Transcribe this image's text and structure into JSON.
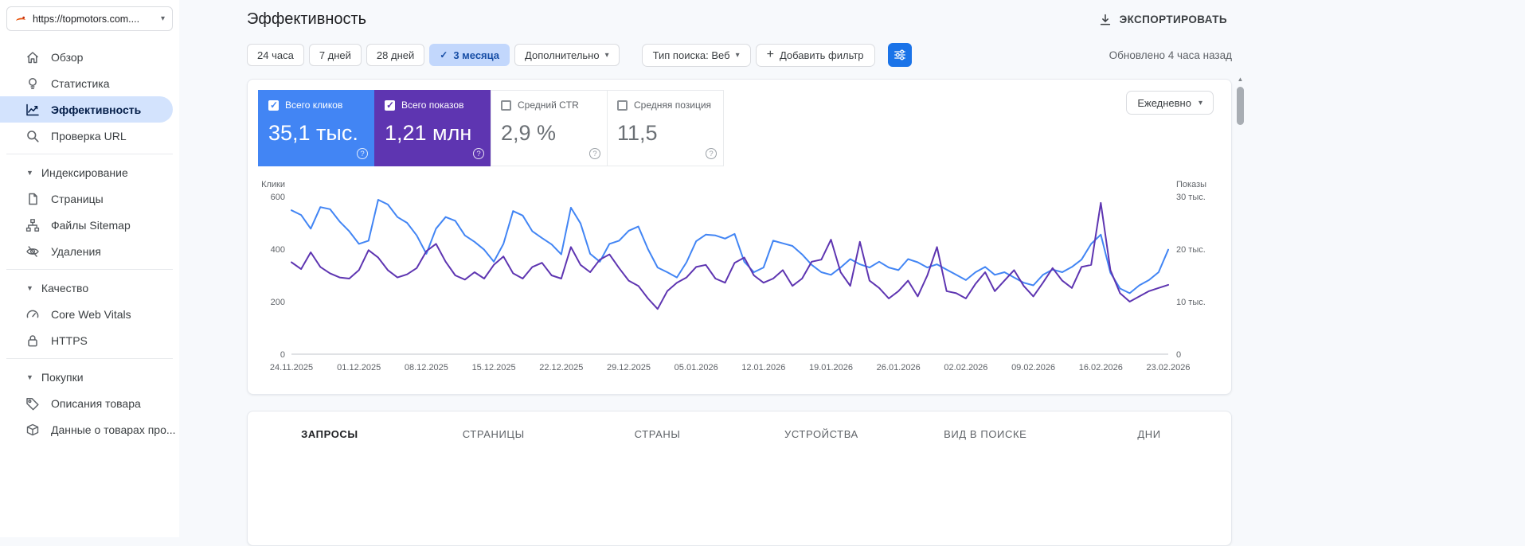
{
  "property": {
    "url": "https://topmotors.com...."
  },
  "sidebar": {
    "selected": "Эффективность",
    "items": [
      {
        "label": "Обзор"
      },
      {
        "label": "Статистика"
      },
      {
        "label": "Эффективность"
      },
      {
        "label": "Проверка URL"
      }
    ],
    "sections": [
      {
        "label": "Индексирование",
        "items": [
          {
            "label": "Страницы"
          },
          {
            "label": "Файлы Sitemap"
          },
          {
            "label": "Удаления"
          }
        ]
      },
      {
        "label": "Качество",
        "items": [
          {
            "label": "Core Web Vitals"
          },
          {
            "label": "HTTPS"
          }
        ]
      },
      {
        "label": "Покупки",
        "items": [
          {
            "label": "Описания товара"
          },
          {
            "label": "Данные о товарах про..."
          }
        ]
      }
    ]
  },
  "header": {
    "title": "Эффективность",
    "export_label": "ЭКСПОРТИРОВАТЬ"
  },
  "filters": {
    "ranges": [
      "24 часа",
      "7 дней",
      "28 дней",
      "3 месяца"
    ],
    "selected_range": "3 месяца",
    "more_label": "Дополнительно",
    "search_type": "Тип поиска: Веб",
    "add_filter": "Добавить фильтр",
    "updated": "Обновлено 4 часа назад"
  },
  "metrics": [
    {
      "label": "Всего кликов",
      "value": "35,1 тыс.",
      "checked": true,
      "color": "#4285f4"
    },
    {
      "label": "Всего показов",
      "value": "1,21 млн",
      "checked": true,
      "color": "#5e35b1"
    },
    {
      "label": "Средний CTR",
      "value": "2,9 %",
      "checked": false,
      "color": "#6b7075"
    },
    {
      "label": "Средняя позиция",
      "value": "11,5",
      "checked": false,
      "color": "#6b7075"
    }
  ],
  "granularity": "Ежедневно",
  "chart_data": {
    "type": "line",
    "x_tick_labels": [
      "24.11.2025",
      "01.12.2025",
      "08.12.2025",
      "15.12.2025",
      "22.12.2025",
      "29.12.2025",
      "05.01.2026",
      "12.01.2026",
      "19.01.2026",
      "26.01.2026",
      "02.02.2026",
      "09.02.2026",
      "16.02.2026",
      "23.02.2026"
    ],
    "left_axis": {
      "label": "Клики",
      "ticks": [
        0,
        200,
        400,
        600
      ],
      "max": 600
    },
    "right_axis": {
      "label": "Показы",
      "ticks": [
        "0",
        "10 тыс.",
        "20 тыс.",
        "30 тыс."
      ],
      "max": 30
    },
    "legend_position": "none",
    "grid": false,
    "series": [
      {
        "name": "Клики",
        "axis": "left",
        "color": "#4285f4",
        "values": [
          548,
          530,
          478,
          560,
          552,
          505,
          468,
          420,
          432,
          588,
          570,
          522,
          500,
          452,
          382,
          478,
          522,
          508,
          452,
          428,
          398,
          352,
          420,
          545,
          528,
          468,
          442,
          418,
          380,
          558,
          498,
          382,
          352,
          420,
          432,
          470,
          486,
          400,
          330,
          312,
          292,
          350,
          430,
          455,
          452,
          440,
          458,
          352,
          312,
          330,
          432,
          422,
          412,
          380,
          340,
          312,
          302,
          330,
          362,
          342,
          330,
          352,
          330,
          320,
          362,
          350,
          330,
          342,
          322,
          302,
          282,
          312,
          332,
          302,
          312,
          292,
          272,
          262,
          302,
          322,
          312,
          332,
          360,
          420,
          455,
          310,
          250,
          232,
          262,
          282,
          312,
          398
        ]
      },
      {
        "name": "Показы (тыс.)",
        "axis": "right",
        "color": "#5e35b1",
        "values": [
          17.5,
          16.2,
          19.4,
          16.6,
          15.4,
          14.6,
          14.4,
          16.0,
          19.8,
          18.4,
          16.0,
          14.6,
          15.2,
          16.4,
          19.6,
          21.0,
          17.6,
          15.0,
          14.2,
          15.6,
          14.4,
          17.0,
          18.6,
          15.4,
          14.4,
          16.6,
          17.4,
          15.0,
          14.4,
          20.4,
          17.0,
          15.6,
          18.0,
          19.0,
          16.4,
          14.0,
          13.0,
          10.6,
          8.6,
          12.0,
          13.6,
          14.6,
          16.6,
          17.0,
          14.4,
          13.6,
          17.4,
          18.4,
          15.0,
          13.6,
          14.4,
          16.0,
          13.0,
          14.4,
          17.6,
          18.0,
          21.8,
          15.6,
          13.0,
          21.4,
          14.0,
          12.6,
          10.6,
          12.0,
          14.0,
          11.0,
          15.0,
          20.4,
          12.0,
          11.6,
          10.6,
          13.4,
          15.6,
          12.0,
          14.0,
          16.0,
          13.0,
          11.0,
          13.6,
          16.4,
          14.0,
          12.6,
          16.6,
          17.0,
          28.8,
          16.0,
          11.6,
          10.0,
          11.0,
          12.0,
          12.6,
          13.2
        ]
      }
    ]
  },
  "tabs": {
    "items": [
      "ЗАПРОСЫ",
      "СТРАНИЦЫ",
      "СТРАНЫ",
      "УСТРОЙСТВА",
      "ВИД В ПОИСКЕ",
      "ДНИ"
    ],
    "active": "ЗАПРОСЫ"
  }
}
